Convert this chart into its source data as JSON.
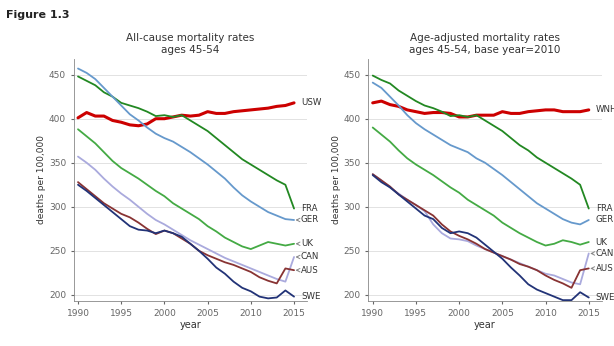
{
  "title_left": "All-cause mortality rates\nages 45-54",
  "title_right": "Age-adjusted mortality rates\nages 45-54, base year=2010",
  "figure_label": "Figure 1.3",
  "ylabel": "deaths per 100,000",
  "xlabel": "year",
  "ylim": [
    193,
    468
  ],
  "yticks": [
    200,
    250,
    300,
    350,
    400,
    450
  ],
  "xlim": [
    1989.5,
    2016.5
  ],
  "xticks": [
    1990,
    1995,
    2000,
    2005,
    2010,
    2015
  ],
  "left": {
    "USW": {
      "color": "#cc0000",
      "lw": 2.2,
      "years": [
        1990,
        1991,
        1992,
        1993,
        1994,
        1995,
        1996,
        1997,
        1998,
        1999,
        2000,
        2001,
        2002,
        2003,
        2004,
        2005,
        2006,
        2007,
        2008,
        2009,
        2010,
        2011,
        2012,
        2013,
        2014,
        2015
      ],
      "values": [
        401,
        407,
        403,
        403,
        398,
        396,
        393,
        392,
        394,
        400,
        400,
        402,
        404,
        403,
        404,
        408,
        406,
        406,
        408,
        409,
        410,
        411,
        412,
        414,
        415,
        418
      ]
    },
    "FRA": {
      "color": "#228822",
      "lw": 1.3,
      "years": [
        1990,
        1991,
        1992,
        1993,
        1994,
        1995,
        1996,
        1997,
        1998,
        1999,
        2000,
        2001,
        2002,
        2003,
        2004,
        2005,
        2006,
        2007,
        2008,
        2009,
        2010,
        2011,
        2012,
        2013,
        2014,
        2015
      ],
      "values": [
        448,
        443,
        438,
        430,
        425,
        418,
        415,
        412,
        408,
        403,
        404,
        402,
        404,
        398,
        392,
        386,
        378,
        370,
        362,
        354,
        348,
        342,
        336,
        330,
        325,
        298
      ]
    },
    "GER": {
      "color": "#6699cc",
      "lw": 1.3,
      "years": [
        1990,
        1991,
        1992,
        1993,
        1994,
        1995,
        1996,
        1997,
        1998,
        1999,
        2000,
        2001,
        2002,
        2003,
        2004,
        2005,
        2006,
        2007,
        2008,
        2009,
        2010,
        2011,
        2012,
        2013,
        2014,
        2015
      ],
      "values": [
        457,
        452,
        445,
        435,
        425,
        415,
        405,
        398,
        390,
        383,
        378,
        374,
        368,
        362,
        355,
        348,
        340,
        332,
        322,
        313,
        306,
        300,
        294,
        290,
        286,
        285
      ]
    },
    "UK": {
      "color": "#44aa44",
      "lw": 1.3,
      "years": [
        1990,
        1991,
        1992,
        1993,
        1994,
        1995,
        1996,
        1997,
        1998,
        1999,
        2000,
        2001,
        2002,
        2003,
        2004,
        2005,
        2006,
        2007,
        2008,
        2009,
        2010,
        2011,
        2012,
        2013,
        2014,
        2015
      ],
      "values": [
        388,
        380,
        372,
        362,
        352,
        344,
        338,
        332,
        325,
        318,
        312,
        304,
        298,
        292,
        286,
        278,
        272,
        265,
        260,
        255,
        252,
        256,
        260,
        258,
        256,
        258
      ]
    },
    "CAN": {
      "color": "#aaaadd",
      "lw": 1.3,
      "years": [
        1990,
        1991,
        1992,
        1993,
        1994,
        1995,
        1996,
        1997,
        1998,
        1999,
        2000,
        2001,
        2002,
        2003,
        2004,
        2005,
        2006,
        2007,
        2008,
        2009,
        2010,
        2011,
        2012,
        2013,
        2014,
        2015
      ],
      "values": [
        357,
        350,
        342,
        332,
        323,
        315,
        308,
        300,
        292,
        285,
        280,
        274,
        268,
        262,
        257,
        252,
        247,
        242,
        238,
        234,
        230,
        226,
        222,
        218,
        215,
        243
      ]
    },
    "AUS": {
      "color": "#883333",
      "lw": 1.3,
      "years": [
        1990,
        1991,
        1992,
        1993,
        1994,
        1995,
        1996,
        1997,
        1998,
        1999,
        2000,
        2001,
        2002,
        2003,
        2004,
        2005,
        2006,
        2007,
        2008,
        2009,
        2010,
        2011,
        2012,
        2013,
        2014,
        2015
      ],
      "values": [
        328,
        320,
        312,
        304,
        298,
        292,
        288,
        282,
        275,
        269,
        273,
        270,
        264,
        258,
        250,
        245,
        241,
        237,
        234,
        230,
        226,
        220,
        216,
        213,
        230,
        228
      ]
    },
    "SWE": {
      "color": "#223377",
      "lw": 1.3,
      "years": [
        1990,
        1991,
        1992,
        1993,
        1994,
        1995,
        1996,
        1997,
        1998,
        1999,
        2000,
        2001,
        2002,
        2003,
        2004,
        2005,
        2006,
        2007,
        2008,
        2009,
        2010,
        2011,
        2012,
        2013,
        2014,
        2015
      ],
      "values": [
        325,
        318,
        310,
        302,
        294,
        286,
        278,
        274,
        273,
        270,
        273,
        270,
        266,
        258,
        250,
        241,
        231,
        224,
        215,
        208,
        204,
        198,
        196,
        197,
        205,
        198
      ]
    }
  },
  "right": {
    "WNH": {
      "color": "#cc0000",
      "lw": 2.2,
      "years": [
        1990,
        1991,
        1992,
        1993,
        1994,
        1995,
        1996,
        1997,
        1998,
        1999,
        2000,
        2001,
        2002,
        2003,
        2004,
        2005,
        2006,
        2007,
        2008,
        2009,
        2010,
        2011,
        2012,
        2013,
        2014,
        2015
      ],
      "values": [
        418,
        420,
        416,
        414,
        410,
        408,
        406,
        407,
        407,
        406,
        402,
        402,
        404,
        404,
        404,
        408,
        406,
        406,
        408,
        409,
        410,
        410,
        408,
        408,
        408,
        410
      ]
    },
    "FRA": {
      "color": "#228822",
      "lw": 1.3,
      "years": [
        1990,
        1991,
        1992,
        1993,
        1994,
        1995,
        1996,
        1997,
        1998,
        1999,
        2000,
        2001,
        2002,
        2003,
        2004,
        2005,
        2006,
        2007,
        2008,
        2009,
        2010,
        2011,
        2012,
        2013,
        2014,
        2015
      ],
      "values": [
        449,
        444,
        440,
        432,
        426,
        420,
        415,
        412,
        408,
        403,
        404,
        402,
        404,
        398,
        392,
        386,
        378,
        370,
        364,
        356,
        350,
        344,
        338,
        332,
        325,
        298
      ]
    },
    "GER": {
      "color": "#6699cc",
      "lw": 1.3,
      "years": [
        1990,
        1991,
        1992,
        1993,
        1994,
        1995,
        1996,
        1997,
        1998,
        1999,
        2000,
        2001,
        2002,
        2003,
        2004,
        2005,
        2006,
        2007,
        2008,
        2009,
        2010,
        2011,
        2012,
        2013,
        2014,
        2015
      ],
      "values": [
        441,
        435,
        425,
        415,
        404,
        395,
        388,
        382,
        376,
        370,
        366,
        362,
        355,
        350,
        343,
        336,
        328,
        320,
        312,
        304,
        298,
        292,
        286,
        282,
        280,
        285
      ]
    },
    "UK": {
      "color": "#44aa44",
      "lw": 1.3,
      "years": [
        1990,
        1991,
        1992,
        1993,
        1994,
        1995,
        1996,
        1997,
        1998,
        1999,
        2000,
        2001,
        2002,
        2003,
        2004,
        2005,
        2006,
        2007,
        2008,
        2009,
        2010,
        2011,
        2012,
        2013,
        2014,
        2015
      ],
      "values": [
        390,
        382,
        374,
        364,
        355,
        348,
        342,
        336,
        329,
        322,
        316,
        308,
        302,
        296,
        290,
        282,
        276,
        270,
        265,
        260,
        256,
        258,
        262,
        260,
        257,
        260
      ]
    },
    "CAN": {
      "color": "#aaaadd",
      "lw": 1.3,
      "years": [
        1990,
        1991,
        1992,
        1993,
        1994,
        1995,
        1996,
        1997,
        1998,
        1999,
        2000,
        2001,
        2002,
        2003,
        2004,
        2005,
        2006,
        2007,
        2008,
        2009,
        2010,
        2011,
        2012,
        2013,
        2014,
        2015
      ],
      "values": [
        337,
        330,
        322,
        315,
        308,
        302,
        295,
        280,
        270,
        264,
        263,
        261,
        256,
        252,
        248,
        244,
        240,
        236,
        232,
        228,
        224,
        222,
        218,
        214,
        212,
        247
      ]
    },
    "AUS": {
      "color": "#883333",
      "lw": 1.3,
      "years": [
        1990,
        1991,
        1992,
        1993,
        1994,
        1995,
        1996,
        1997,
        1998,
        1999,
        2000,
        2001,
        2002,
        2003,
        2004,
        2005,
        2006,
        2007,
        2008,
        2009,
        2010,
        2011,
        2012,
        2013,
        2014,
        2015
      ],
      "values": [
        337,
        330,
        323,
        314,
        308,
        302,
        296,
        290,
        280,
        272,
        267,
        263,
        258,
        252,
        248,
        244,
        240,
        235,
        232,
        228,
        222,
        217,
        213,
        208,
        228,
        230
      ]
    },
    "SWE": {
      "color": "#223377",
      "lw": 1.3,
      "years": [
        1990,
        1991,
        1992,
        1993,
        1994,
        1995,
        1996,
        1997,
        1998,
        1999,
        2000,
        2001,
        2002,
        2003,
        2004,
        2005,
        2006,
        2007,
        2008,
        2009,
        2010,
        2011,
        2012,
        2013,
        2014,
        2015
      ],
      "values": [
        336,
        328,
        322,
        314,
        306,
        298,
        290,
        286,
        276,
        270,
        272,
        270,
        265,
        257,
        249,
        241,
        231,
        222,
        212,
        206,
        202,
        198,
        194,
        194,
        203,
        197
      ]
    }
  },
  "bg_color": "#ffffff",
  "plot_bg": "#ffffff",
  "grid_color": "#dddddd",
  "font_color": "#333333",
  "tick_color": "#666666"
}
